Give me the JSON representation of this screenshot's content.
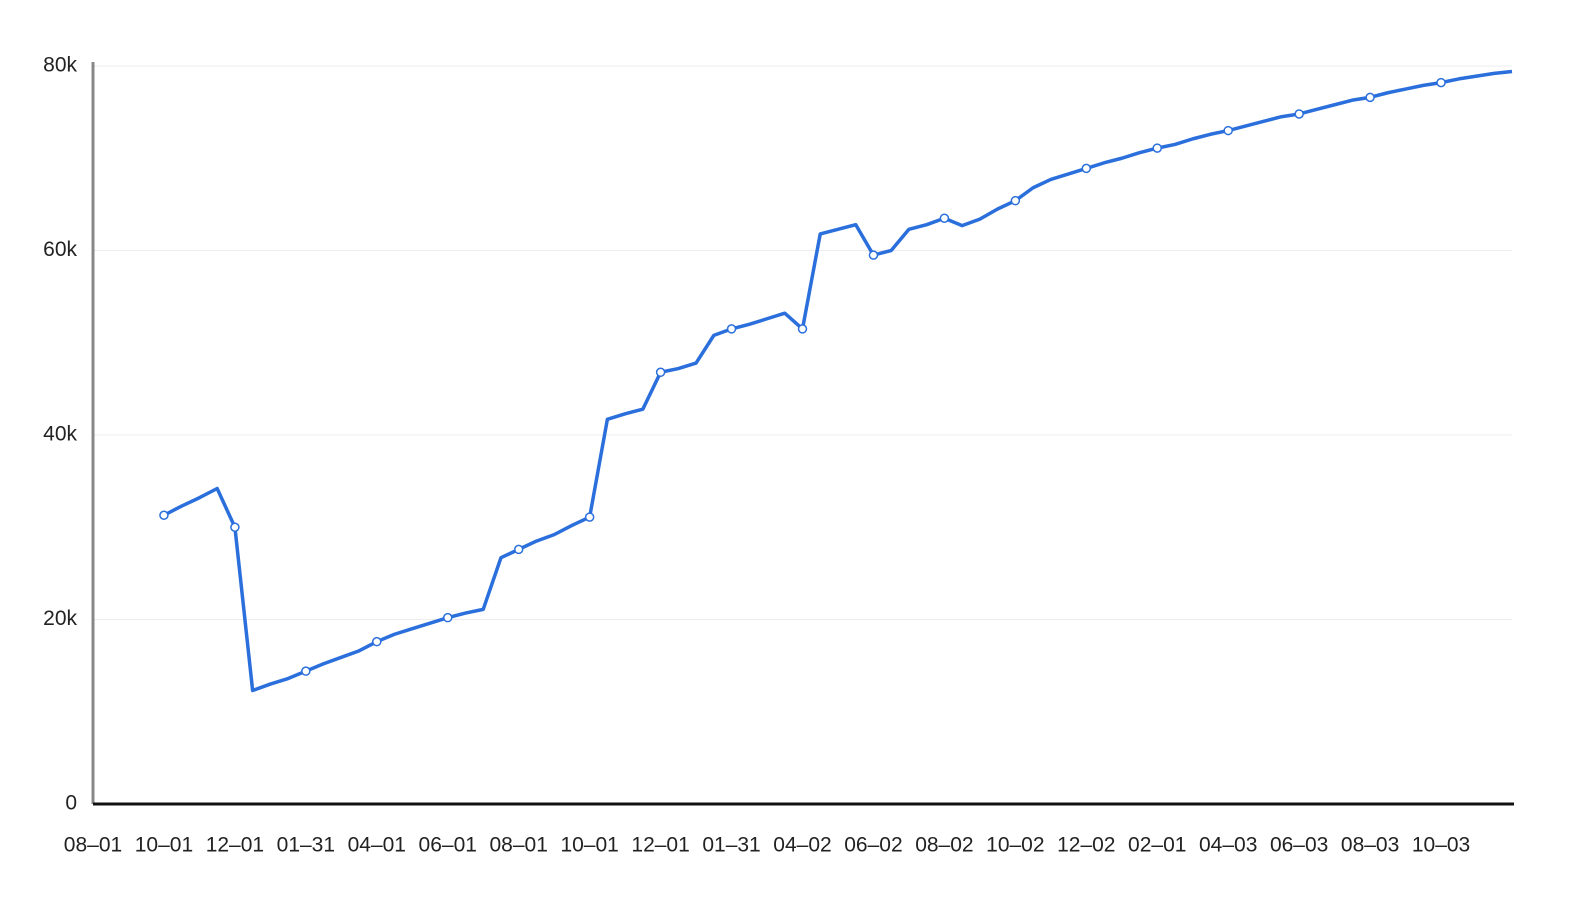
{
  "chart_data": {
    "type": "line",
    "categories": [
      "08–01",
      null,
      null,
      null,
      "10–01",
      null,
      null,
      null,
      "12–01",
      null,
      null,
      null,
      "01–31",
      null,
      null,
      null,
      "04–01",
      null,
      null,
      null,
      "06–01",
      null,
      null,
      null,
      "08–01",
      null,
      null,
      null,
      "10–01",
      null,
      null,
      null,
      "12–01",
      null,
      null,
      null,
      "01–31",
      null,
      null,
      null,
      "04–02",
      null,
      null,
      null,
      "06–02",
      null,
      null,
      null,
      "08–02",
      null,
      null,
      null,
      "10–02",
      null,
      null,
      null,
      "12–02",
      null,
      null,
      null,
      "02–01",
      null,
      null,
      null,
      "04–03",
      null,
      null,
      null,
      "06–03",
      null,
      null,
      null,
      "08–03",
      null,
      null,
      null,
      "10–03",
      null,
      null,
      null,
      null
    ],
    "series": [
      {
        "color": "#2a6fdb",
        "values": [
          null,
          null,
          null,
          null,
          31300,
          32300,
          33200,
          34200,
          30000,
          12300,
          13000,
          13600,
          14400,
          15200,
          15900,
          16600,
          17600,
          18400,
          19000,
          19600,
          20200,
          20700,
          21100,
          26700,
          27600,
          28500,
          29200,
          30200,
          31100,
          41700,
          42300,
          42800,
          46800,
          47200,
          47800,
          50800,
          51500,
          52000,
          52600,
          53200,
          51500,
          61800,
          62300,
          62800,
          59500,
          60000,
          62300,
          62800,
          63500,
          62700,
          63400,
          64500,
          65400,
          66800,
          67700,
          68300,
          68900,
          69500,
          70000,
          70600,
          71100,
          71500,
          72100,
          72600,
          73000,
          73500,
          74000,
          74500,
          74800,
          75300,
          75800,
          76300,
          76600,
          77100,
          77500,
          77900,
          78200,
          78600,
          78900,
          79200,
          79400
        ]
      }
    ],
    "ylim": [
      0,
      80000
    ],
    "yticks": [
      0,
      {
        "value": 20000,
        "label": "20k"
      },
      {
        "value": 40000,
        "label": "40k"
      },
      {
        "value": 60000,
        "label": "60k"
      },
      {
        "value": 80000,
        "label": "80k"
      }
    ],
    "grid": true,
    "markers": true
  }
}
